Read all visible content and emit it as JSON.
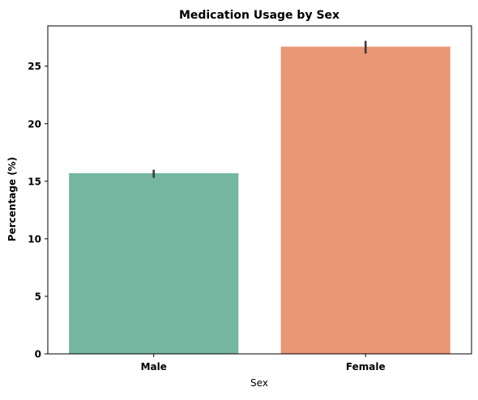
{
  "chart_data": {
    "type": "bar",
    "title": "Medication Usage by Sex",
    "xlabel": "Sex",
    "ylabel": "Percentage (%)",
    "categories": [
      "Male",
      "Female"
    ],
    "values": [
      15.7,
      26.7
    ],
    "error_bars": [
      {
        "low": 15.3,
        "high": 16.0
      },
      {
        "low": 26.1,
        "high": 27.2
      }
    ],
    "colors": [
      "#74b6a0",
      "#e99775"
    ],
    "error_bar_color": "#3c3c3c",
    "ylim": [
      0,
      28.5
    ],
    "yticks": [
      0,
      5,
      10,
      15,
      20,
      25
    ],
    "ytick_labels": [
      "0",
      "5",
      "10",
      "15",
      "20",
      "25"
    ],
    "grid": false,
    "legend": "none"
  }
}
